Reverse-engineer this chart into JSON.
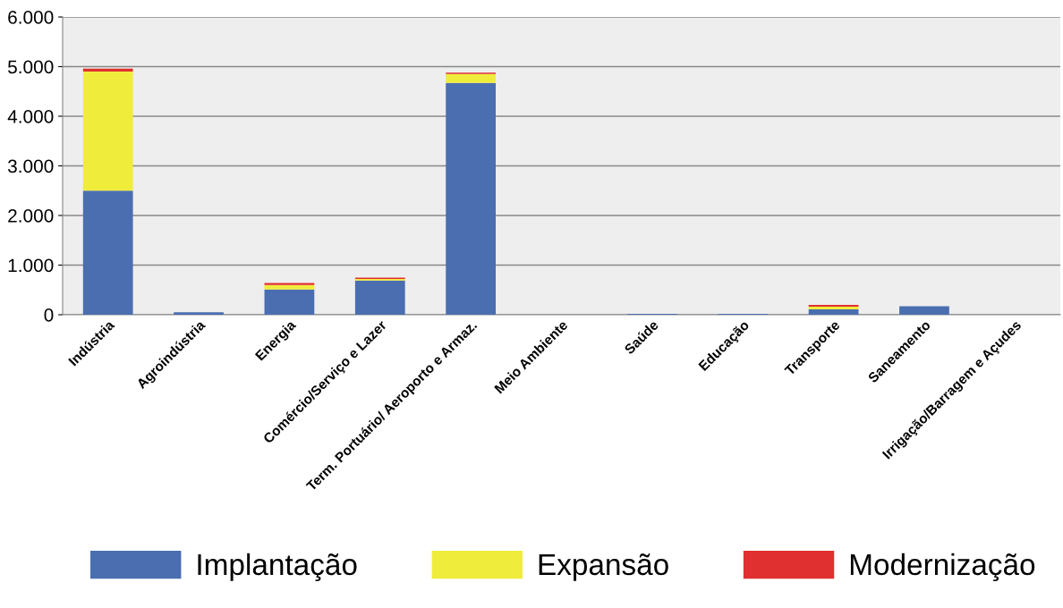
{
  "chart_data": {
    "type": "bar",
    "stacked": true,
    "categories": [
      "Indústria",
      "Agroindústria",
      "Energia",
      "Comércio/Serviço e Lazer",
      "Term. Portuário/ Aeroporto e Armaz.",
      "Meio Ambiente",
      "Saúde",
      "Educação",
      "Transporte",
      "Saneamento",
      "Irrigação/Barragem e Açudes"
    ],
    "series": [
      {
        "name": "Implantação",
        "color": "#4a6eb0",
        "values": [
          2500,
          50,
          510,
          690,
          4670,
          0,
          20,
          20,
          110,
          170,
          0
        ]
      },
      {
        "name": "Expansão",
        "color": "#f0ec3c",
        "values": [
          2400,
          0,
          90,
          30,
          180,
          0,
          0,
          0,
          50,
          0,
          0
        ]
      },
      {
        "name": "Modernização",
        "color": "#e03030",
        "values": [
          60,
          0,
          40,
          30,
          30,
          0,
          0,
          0,
          40,
          0,
          0
        ]
      }
    ],
    "ylim": [
      0,
      6000
    ],
    "yticks": [
      0,
      {
        "value": 1000,
        "label": "1.000"
      },
      {
        "value": 2000,
        "label": "2.000"
      },
      {
        "value": 3000,
        "label": "3.000"
      },
      {
        "value": 4000,
        "label": "4.000"
      },
      {
        "value": 5000,
        "label": "5.000"
      },
      {
        "value": 6000,
        "label": "6.000"
      }
    ],
    "grid": "y",
    "legend": "bottom"
  }
}
